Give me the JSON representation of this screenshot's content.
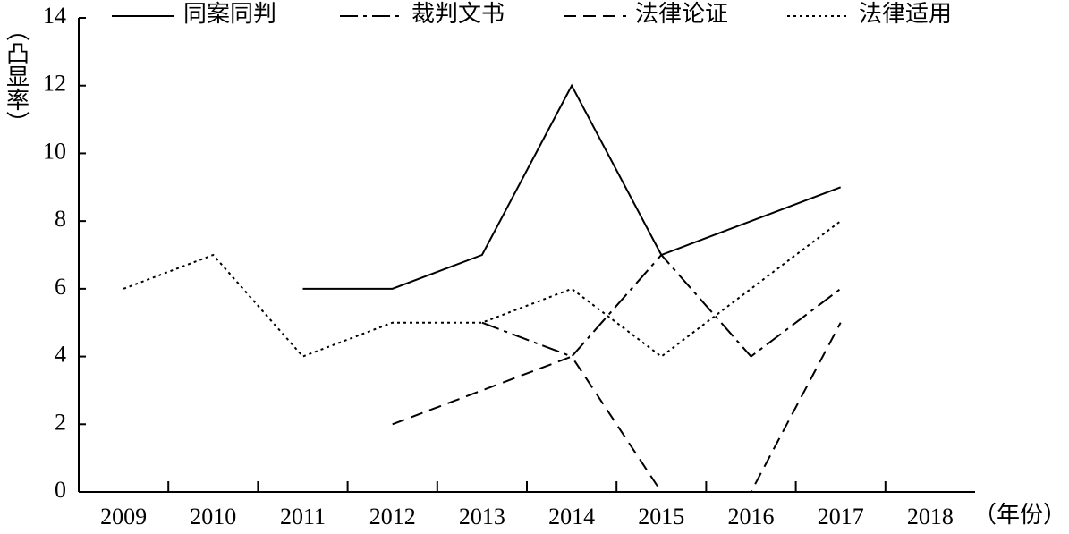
{
  "chart_data": {
    "type": "line",
    "x_label": "（年份）",
    "y_label": "（凸显率）",
    "categories": [
      "2009",
      "2010",
      "2011",
      "2012",
      "2013",
      "2014",
      "2015",
      "2016",
      "2017",
      "2018"
    ],
    "series": [
      {
        "name": "同案同判",
        "color": "#000000",
        "line_style": "solid",
        "values": [
          null,
          null,
          6,
          6,
          7,
          12,
          7,
          8,
          9,
          null
        ]
      },
      {
        "name": "裁判文书",
        "color": "#000000",
        "line_style": "dashdot",
        "values": [
          null,
          null,
          null,
          null,
          5,
          4,
          7,
          4,
          6,
          null
        ]
      },
      {
        "name": "法律论证",
        "color": "#000000",
        "line_style": "dashed",
        "values": [
          null,
          null,
          null,
          2,
          3,
          4,
          0,
          0,
          5,
          null
        ]
      },
      {
        "name": "法律适用",
        "color": "#000000",
        "line_style": "dotted",
        "values": [
          6,
          7,
          4,
          5,
          5,
          6,
          4,
          6,
          8,
          null
        ]
      }
    ],
    "ylim": [
      0,
      14
    ],
    "yticks": [
      0,
      2,
      4,
      6,
      8,
      10,
      12,
      14
    ],
    "legend": "top"
  }
}
